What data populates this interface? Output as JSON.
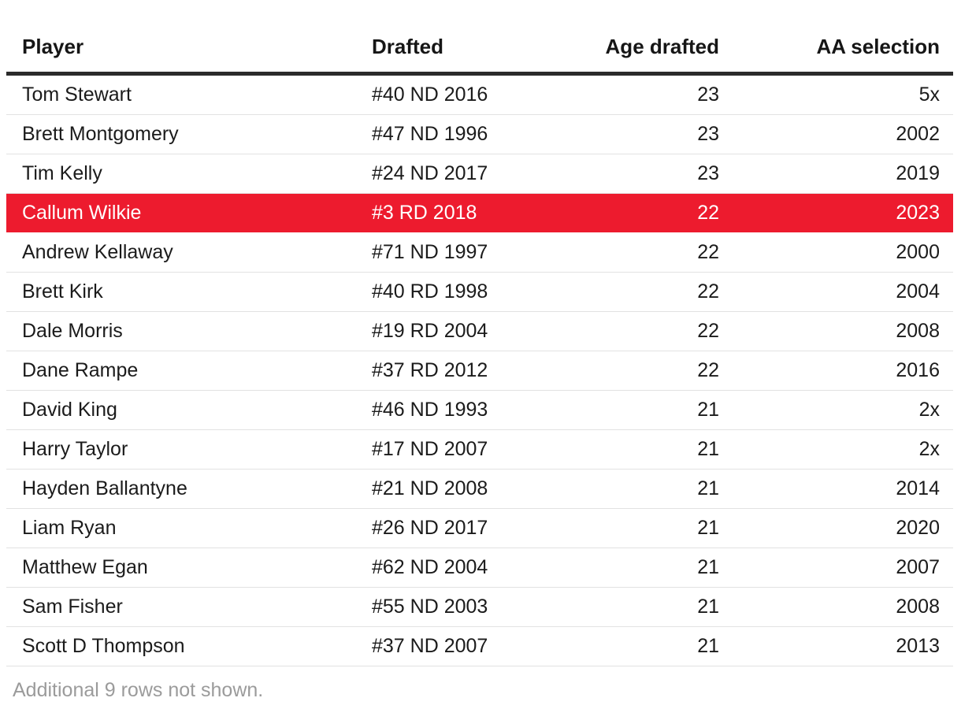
{
  "chart_data": {
    "type": "table",
    "columns": [
      "Player",
      "Drafted",
      "Age drafted",
      "AA selection"
    ],
    "rows": [
      [
        "Tom Stewart",
        "#40 ND 2016",
        "23",
        "5x"
      ],
      [
        "Brett Montgomery",
        "#47 ND 1996",
        "23",
        "2002"
      ],
      [
        "Tim Kelly",
        "#24 ND 2017",
        "23",
        "2019"
      ],
      [
        "Callum Wilkie",
        "#3 RD 2018",
        "22",
        "2023"
      ],
      [
        "Andrew Kellaway",
        "#71 ND 1997",
        "22",
        "2000"
      ],
      [
        "Brett Kirk",
        "#40 RD 1998",
        "22",
        "2004"
      ],
      [
        "Dale Morris",
        "#19 RD 2004",
        "22",
        "2008"
      ],
      [
        "Dane Rampe",
        "#37 RD 2012",
        "22",
        "2016"
      ],
      [
        "David King",
        "#46 ND 1993",
        "21",
        "2x"
      ],
      [
        "Harry Taylor",
        "#17 ND 2007",
        "21",
        "2x"
      ],
      [
        "Hayden Ballantyne",
        "#21 ND 2008",
        "21",
        "2014"
      ],
      [
        "Liam Ryan",
        "#26 ND 2017",
        "21",
        "2020"
      ],
      [
        "Matthew Egan",
        "#62 ND 2004",
        "21",
        "2007"
      ],
      [
        "Sam Fisher",
        "#55 ND 2003",
        "21",
        "2008"
      ],
      [
        "Scott D Thompson",
        "#37 ND 2007",
        "21",
        "2013"
      ]
    ],
    "highlighted_row": "Callum Wilkie",
    "footnote": "Additional 9 rows not shown."
  },
  "table": {
    "columns": [
      {
        "label": "Player",
        "align": "left"
      },
      {
        "label": "Drafted",
        "align": "left"
      },
      {
        "label": "Age drafted",
        "align": "right"
      },
      {
        "label": "AA selection",
        "align": "right"
      }
    ],
    "rows": [
      {
        "player": "Tom Stewart",
        "drafted": "#40 ND 2016",
        "age_drafted": "23",
        "aa_selection": "5x",
        "highlighted": false
      },
      {
        "player": "Brett Montgomery",
        "drafted": "#47 ND 1996",
        "age_drafted": "23",
        "aa_selection": "2002",
        "highlighted": false
      },
      {
        "player": "Tim Kelly",
        "drafted": "#24 ND 2017",
        "age_drafted": "23",
        "aa_selection": "2019",
        "highlighted": false
      },
      {
        "player": "Callum Wilkie",
        "drafted": "#3 RD 2018",
        "age_drafted": "22",
        "aa_selection": "2023",
        "highlighted": true
      },
      {
        "player": "Andrew Kellaway",
        "drafted": "#71 ND 1997",
        "age_drafted": "22",
        "aa_selection": "2000",
        "highlighted": false
      },
      {
        "player": "Brett Kirk",
        "drafted": "#40 RD 1998",
        "age_drafted": "22",
        "aa_selection": "2004",
        "highlighted": false
      },
      {
        "player": "Dale Morris",
        "drafted": "#19 RD 2004",
        "age_drafted": "22",
        "aa_selection": "2008",
        "highlighted": false
      },
      {
        "player": "Dane Rampe",
        "drafted": "#37 RD 2012",
        "age_drafted": "22",
        "aa_selection": "2016",
        "highlighted": false
      },
      {
        "player": "David King",
        "drafted": "#46 ND 1993",
        "age_drafted": "21",
        "aa_selection": "2x",
        "highlighted": false
      },
      {
        "player": "Harry Taylor",
        "drafted": "#17 ND 2007",
        "age_drafted": "21",
        "aa_selection": "2x",
        "highlighted": false
      },
      {
        "player": "Hayden Ballantyne",
        "drafted": "#21 ND 2008",
        "age_drafted": "21",
        "aa_selection": "2014",
        "highlighted": false
      },
      {
        "player": "Liam Ryan",
        "drafted": "#26 ND 2017",
        "age_drafted": "21",
        "aa_selection": "2020",
        "highlighted": false
      },
      {
        "player": "Matthew Egan",
        "drafted": "#62 ND 2004",
        "age_drafted": "21",
        "aa_selection": "2007",
        "highlighted": false
      },
      {
        "player": "Sam Fisher",
        "drafted": "#55 ND 2003",
        "age_drafted": "21",
        "aa_selection": "2008",
        "highlighted": false
      },
      {
        "player": "Scott D Thompson",
        "drafted": "#37 ND 2007",
        "age_drafted": "21",
        "aa_selection": "2013",
        "highlighted": false
      }
    ],
    "highlight_color": "#ed1b2e",
    "footnote": "Additional 9 rows not shown."
  }
}
